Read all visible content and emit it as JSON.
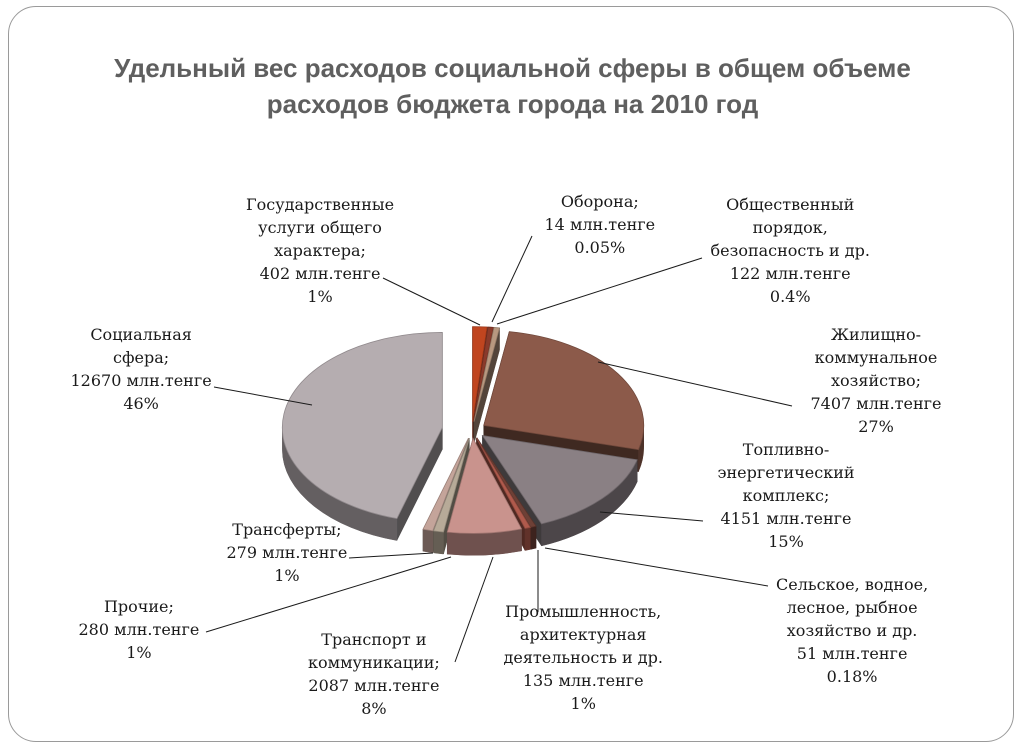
{
  "title_lines": [
    "Удельный вес расходов социальной сферы в общем объеме",
    "расходов бюджета города на 2010 год"
  ],
  "chart_data": {
    "type": "pie",
    "title": "Удельный вес расходов социальной сферы в общем объеме расходов бюджета города на 2010 год",
    "unit": "млн.тенге",
    "exploded": true,
    "three_d": true,
    "slices": [
      {
        "name": "Государственные услуги общего характера",
        "value": 402,
        "percent": "1%",
        "color": "#c0451f",
        "label_lines": [
          "Государственные",
          "услуги общего",
          "характера;",
          "402 млн.тенге",
          "1%"
        ]
      },
      {
        "name": "Оборона",
        "value": 14,
        "percent": "0.05%",
        "color": "#8a3a2a",
        "label_lines": [
          "Оборона;",
          "14 млн.тенге",
          "0.05%"
        ]
      },
      {
        "name": "Общественный порядок, безопасность и др.",
        "value": 122,
        "percent": "0.4%",
        "color": "#b89880",
        "label_lines": [
          "Общественный",
          "порядок,",
          "безопасность  и др.",
          "122 млн.тенге",
          "0.4%"
        ]
      },
      {
        "name": "Жилищно-коммунальное хозяйство",
        "value": 7407,
        "percent": "27%",
        "color": "#8c5a4a",
        "label_lines": [
          "Жилищно-",
          "коммунальное",
          "хозяйство;",
          "7407  млн.тенге",
          "27%"
        ]
      },
      {
        "name": "Топливно-энергетический комплекс",
        "value": 4151,
        "percent": "15%",
        "color": "#8a8084",
        "label_lines": [
          "Топливно-",
          "энергетический",
          "комплекс;",
          "4151  млн.тенге",
          "15%"
        ]
      },
      {
        "name": "Сельское, водное, лесное, рыбное хозяйство и др.",
        "value": 51,
        "percent": "0.18%",
        "color": "#6e4036",
        "label_lines": [
          "Сельское, водное,",
          "лесное, рыбное",
          "хозяйство и др.",
          "51  млн.тенге",
          "0.18%"
        ]
      },
      {
        "name": "Промышленность, архитектурная деятельность и др.",
        "value": 135,
        "percent": "1%",
        "color": "#b05a4c",
        "label_lines": [
          "Промышленность,",
          "архитектурная",
          "деятельность и др.",
          "135  млн.тенге",
          "1%"
        ]
      },
      {
        "name": "Транспорт и коммуникации",
        "value": 2087,
        "percent": "8%",
        "color": "#c9938d",
        "label_lines": [
          "Транспорт и",
          "коммуникации;",
          "2087 млн.тенге",
          "8%"
        ]
      },
      {
        "name": "Прочие",
        "value": 280,
        "percent": "1%",
        "color": "#b7aa98",
        "label_lines": [
          "Прочие;",
          "280  млн.тенге",
          "1%"
        ]
      },
      {
        "name": "Трансферты",
        "value": 279,
        "percent": "1%",
        "color": "#c4a49a",
        "label_lines": [
          "Трансферты;",
          "279 млн.тенге",
          "1%"
        ]
      },
      {
        "name": "Социальная сфера",
        "value": 12670,
        "percent": "46%",
        "color": "#b5adb0",
        "label_lines": [
          "Социальная",
          "сфера;",
          "12670 млн.тенге",
          "46%"
        ]
      }
    ]
  }
}
